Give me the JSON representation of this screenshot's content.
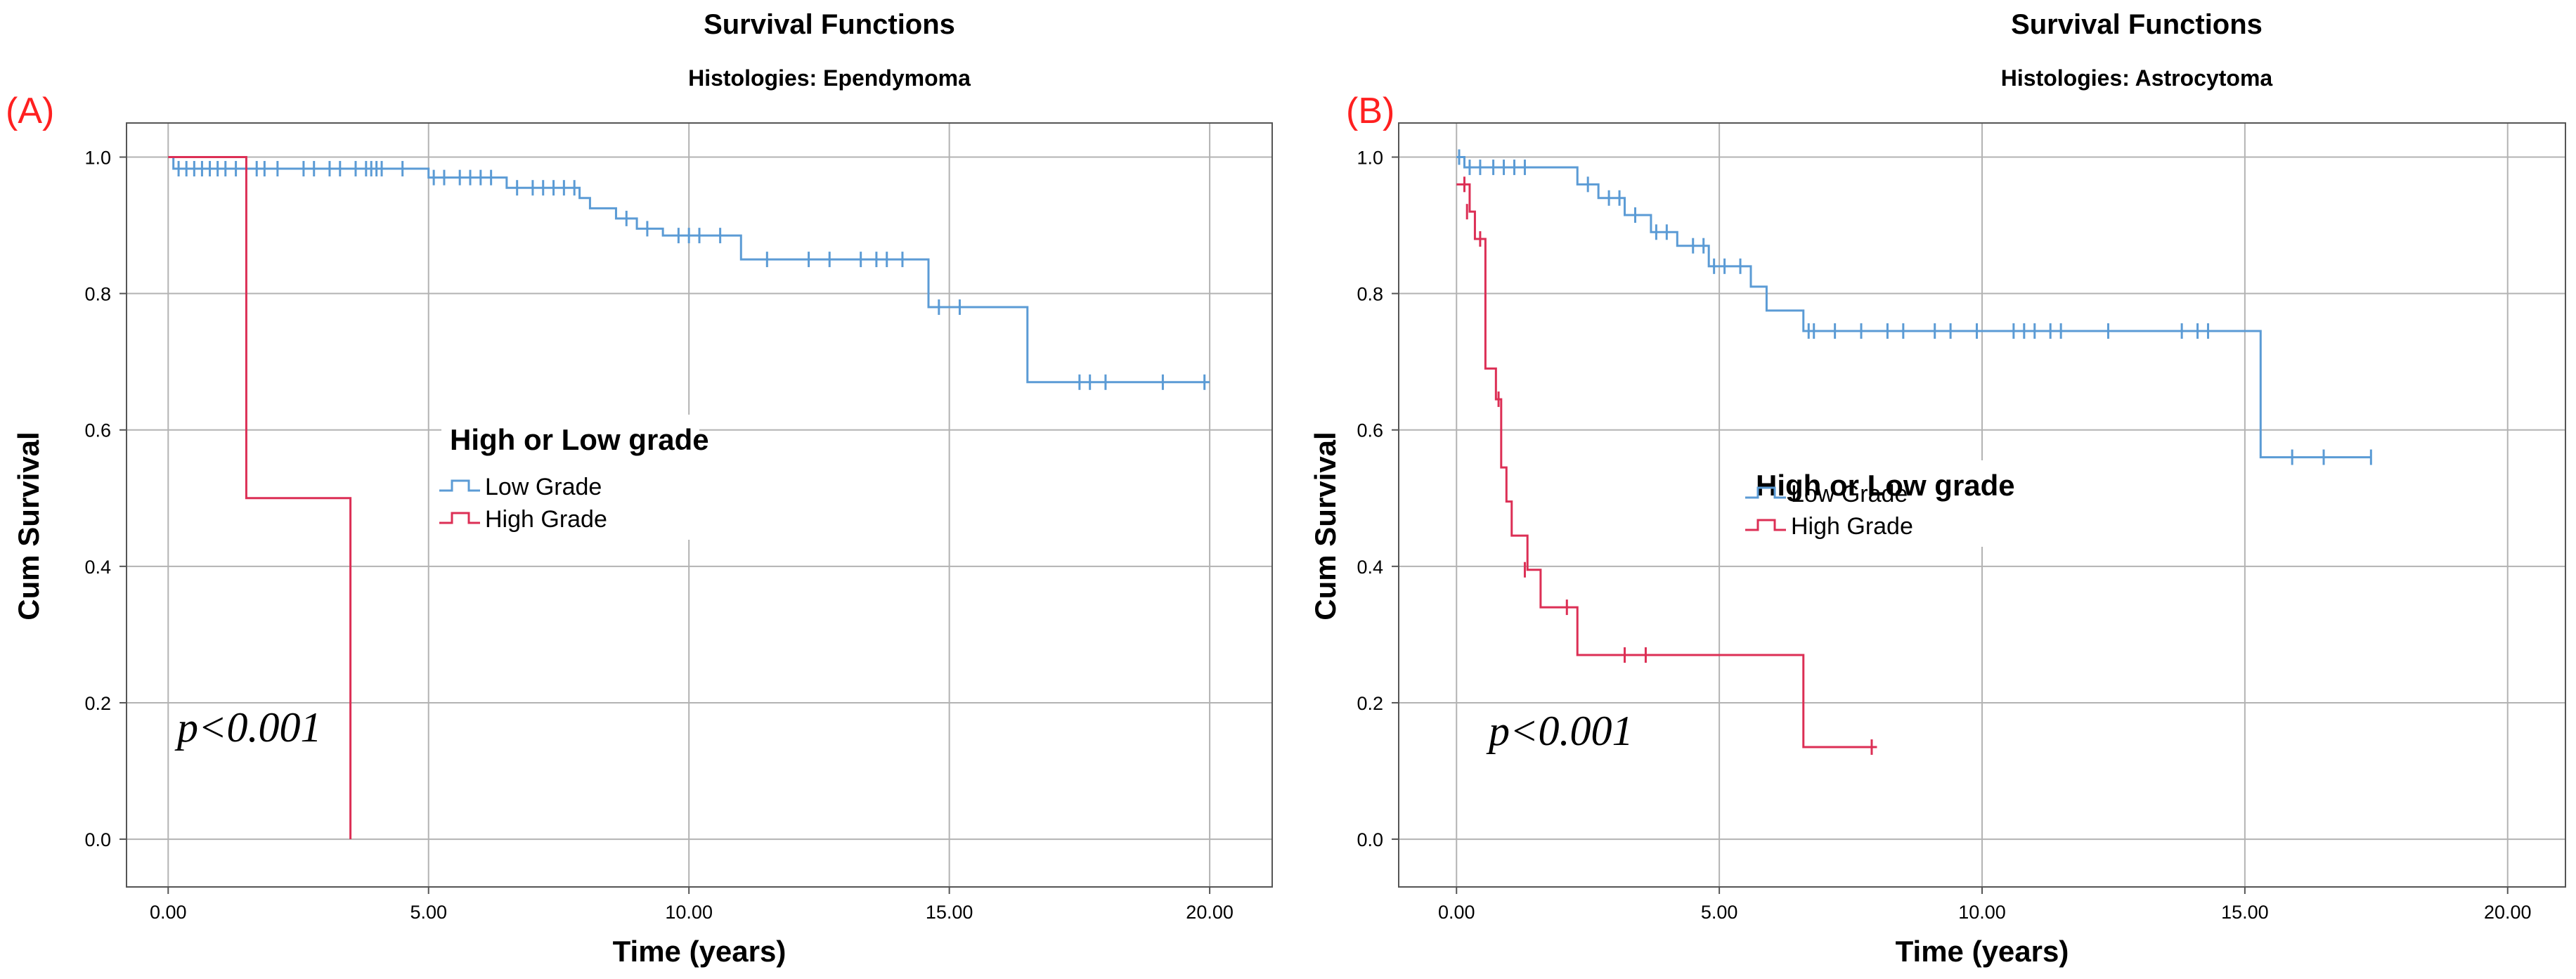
{
  "colors": {
    "low": "#5b9bd5",
    "high": "#dc2f55",
    "grid": "#b3b3b3",
    "frame": "#555555",
    "label": "#ff2020"
  },
  "chart_data": [
    {
      "type": "line",
      "panel": "(A)",
      "title": "Survival Functions",
      "subtitle": "Histologies: Ependymoma",
      "xlabel": "Time (years)",
      "ylabel": "Cum Survival",
      "xlim": [
        -0.8,
        21.2
      ],
      "ylim": [
        -0.07,
        1.05
      ],
      "xticks": [
        0,
        5,
        10,
        15,
        20
      ],
      "xtick_labels": [
        "0.00",
        "5.00",
        "10.00",
        "15.00",
        "20.00"
      ],
      "yticks": [
        0,
        0.2,
        0.4,
        0.6,
        0.8,
        1.0
      ],
      "ytick_labels": [
        "0.0",
        "0.2",
        "0.4",
        "0.6",
        "0.8",
        "1.0"
      ],
      "grid": true,
      "legend": {
        "title": "High or Low grade",
        "position": "center-left",
        "entries": [
          "Low Grade",
          "High Grade"
        ]
      },
      "annotation": "p<0.001",
      "series": [
        {
          "name": "Low Grade",
          "color_key": "low",
          "steps": [
            [
              0,
              1.0
            ],
            [
              0.1,
              0.983
            ],
            [
              5.0,
              0.97
            ],
            [
              6.5,
              0.955
            ],
            [
              7.9,
              0.94
            ],
            [
              8.1,
              0.925
            ],
            [
              8.6,
              0.91
            ],
            [
              9.0,
              0.895
            ],
            [
              9.5,
              0.885
            ],
            [
              11.0,
              0.85
            ],
            [
              14.6,
              0.78
            ],
            [
              16.5,
              0.67
            ],
            [
              20.0,
              0.67
            ]
          ],
          "censored": [
            [
              0.2,
              0.983
            ],
            [
              0.35,
              0.983
            ],
            [
              0.5,
              0.983
            ],
            [
              0.65,
              0.983
            ],
            [
              0.8,
              0.983
            ],
            [
              0.95,
              0.983
            ],
            [
              1.1,
              0.983
            ],
            [
              1.3,
              0.983
            ],
            [
              1.7,
              0.983
            ],
            [
              1.85,
              0.983
            ],
            [
              2.1,
              0.983
            ],
            [
              2.6,
              0.983
            ],
            [
              2.8,
              0.983
            ],
            [
              3.1,
              0.983
            ],
            [
              3.3,
              0.983
            ],
            [
              3.6,
              0.983
            ],
            [
              3.8,
              0.983
            ],
            [
              3.9,
              0.983
            ],
            [
              4.0,
              0.983
            ],
            [
              4.1,
              0.983
            ],
            [
              4.5,
              0.983
            ],
            [
              5.1,
              0.97
            ],
            [
              5.3,
              0.97
            ],
            [
              5.6,
              0.97
            ],
            [
              5.8,
              0.97
            ],
            [
              6.0,
              0.97
            ],
            [
              6.2,
              0.97
            ],
            [
              6.7,
              0.955
            ],
            [
              7.0,
              0.955
            ],
            [
              7.2,
              0.955
            ],
            [
              7.4,
              0.955
            ],
            [
              7.6,
              0.955
            ],
            [
              7.8,
              0.955
            ],
            [
              8.8,
              0.91
            ],
            [
              9.2,
              0.895
            ],
            [
              9.8,
              0.885
            ],
            [
              10.0,
              0.885
            ],
            [
              10.2,
              0.885
            ],
            [
              10.6,
              0.885
            ],
            [
              11.5,
              0.85
            ],
            [
              12.3,
              0.85
            ],
            [
              12.7,
              0.85
            ],
            [
              13.3,
              0.85
            ],
            [
              13.6,
              0.85
            ],
            [
              13.8,
              0.85
            ],
            [
              14.1,
              0.85
            ],
            [
              14.8,
              0.78
            ],
            [
              15.2,
              0.78
            ],
            [
              17.5,
              0.67
            ],
            [
              17.7,
              0.67
            ],
            [
              18.0,
              0.67
            ],
            [
              19.1,
              0.67
            ],
            [
              19.9,
              0.67
            ]
          ]
        },
        {
          "name": "High Grade",
          "color_key": "high",
          "steps": [
            [
              0,
              1.0
            ],
            [
              1.5,
              0.5
            ],
            [
              3.5,
              0.0
            ],
            [
              3.5,
              0.0
            ]
          ],
          "censored": []
        }
      ]
    },
    {
      "type": "line",
      "panel": "(B)",
      "title": "Survival Functions",
      "subtitle": "Histologies: Astrocytoma",
      "xlabel": "Time (years)",
      "ylabel": "Cum Survival",
      "xlim": [
        -1.1,
        21.1
      ],
      "ylim": [
        -0.07,
        1.05
      ],
      "xticks": [
        0,
        5,
        10,
        15,
        20
      ],
      "xtick_labels": [
        "0.00",
        "5.00",
        "10.00",
        "15.00",
        "20.00"
      ],
      "yticks": [
        0,
        0.2,
        0.4,
        0.6,
        0.8,
        1.0
      ],
      "ytick_labels": [
        "0.0",
        "0.2",
        "0.4",
        "0.6",
        "0.8",
        "1.0"
      ],
      "grid": true,
      "legend": {
        "title": "High or Low grade",
        "position": "center-left",
        "entries": [
          "Low Grade",
          "High Grade"
        ]
      },
      "annotation": "p<0.001",
      "series": [
        {
          "name": "Low Grade",
          "color_key": "low",
          "steps": [
            [
              0,
              1.0
            ],
            [
              0.15,
              0.985
            ],
            [
              2.3,
              0.96
            ],
            [
              2.7,
              0.94
            ],
            [
              3.2,
              0.915
            ],
            [
              3.7,
              0.89
            ],
            [
              4.2,
              0.87
            ],
            [
              4.8,
              0.84
            ],
            [
              5.6,
              0.81
            ],
            [
              5.9,
              0.775
            ],
            [
              6.6,
              0.745
            ],
            [
              15.3,
              0.56
            ],
            [
              17.4,
              0.56
            ]
          ],
          "censored": [
            [
              0.05,
              1.0
            ],
            [
              0.25,
              0.985
            ],
            [
              0.45,
              0.985
            ],
            [
              0.7,
              0.985
            ],
            [
              0.9,
              0.985
            ],
            [
              1.1,
              0.985
            ],
            [
              1.3,
              0.985
            ],
            [
              2.5,
              0.96
            ],
            [
              2.9,
              0.94
            ],
            [
              3.1,
              0.94
            ],
            [
              3.4,
              0.915
            ],
            [
              3.8,
              0.89
            ],
            [
              4.0,
              0.89
            ],
            [
              4.5,
              0.87
            ],
            [
              4.7,
              0.87
            ],
            [
              4.9,
              0.84
            ],
            [
              5.1,
              0.84
            ],
            [
              5.4,
              0.84
            ],
            [
              6.7,
              0.745
            ],
            [
              6.8,
              0.745
            ],
            [
              7.2,
              0.745
            ],
            [
              7.7,
              0.745
            ],
            [
              8.2,
              0.745
            ],
            [
              8.5,
              0.745
            ],
            [
              9.1,
              0.745
            ],
            [
              9.4,
              0.745
            ],
            [
              9.9,
              0.745
            ],
            [
              10.6,
              0.745
            ],
            [
              10.8,
              0.745
            ],
            [
              11.0,
              0.745
            ],
            [
              11.3,
              0.745
            ],
            [
              11.5,
              0.745
            ],
            [
              12.4,
              0.745
            ],
            [
              13.8,
              0.745
            ],
            [
              14.1,
              0.745
            ],
            [
              14.3,
              0.745
            ],
            [
              15.9,
              0.56
            ],
            [
              16.5,
              0.56
            ],
            [
              17.4,
              0.56
            ]
          ]
        },
        {
          "name": "High Grade",
          "color_key": "high",
          "steps": [
            [
              0,
              0.96
            ],
            [
              0.25,
              0.92
            ],
            [
              0.35,
              0.88
            ],
            [
              0.55,
              0.69
            ],
            [
              0.75,
              0.645
            ],
            [
              0.85,
              0.545
            ],
            [
              0.95,
              0.495
            ],
            [
              1.05,
              0.445
            ],
            [
              1.35,
              0.395
            ],
            [
              1.6,
              0.34
            ],
            [
              2.3,
              0.27
            ],
            [
              6.6,
              0.135
            ],
            [
              8.0,
              0.135
            ]
          ],
          "censored": [
            [
              0.15,
              0.96
            ],
            [
              0.2,
              0.92
            ],
            [
              0.45,
              0.88
            ],
            [
              0.8,
              0.645
            ],
            [
              1.3,
              0.395
            ],
            [
              2.1,
              0.34
            ],
            [
              3.2,
              0.27
            ],
            [
              3.6,
              0.27
            ],
            [
              7.9,
              0.135
            ]
          ]
        }
      ]
    }
  ]
}
